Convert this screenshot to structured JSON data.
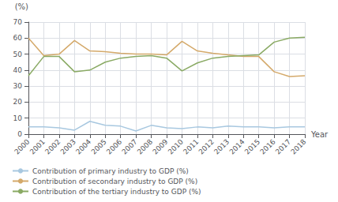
{
  "chart_data": {
    "type": "line",
    "xlabel": "Year",
    "ylabel": "(%)",
    "x": [
      2000,
      2001,
      2002,
      2003,
      2004,
      2005,
      2006,
      2007,
      2008,
      2009,
      2010,
      2011,
      2012,
      2013,
      2014,
      2015,
      2016,
      2017,
      2018
    ],
    "xlim": [
      2000,
      2018
    ],
    "xticks": [
      2000,
      2001,
      2002,
      2003,
      2004,
      2005,
      2006,
      2007,
      2008,
      2009,
      2010,
      2011,
      2012,
      2013,
      2014,
      2015,
      2016,
      2017,
      2018
    ],
    "ylim": [
      0,
      70
    ],
    "yticks": [
      0,
      10,
      20,
      30,
      40,
      50,
      60,
      70
    ],
    "series": [
      {
        "name": "Contribution of primary industry to GDP (%)",
        "color": "#a8c8e0",
        "values": [
          4.5,
          4.5,
          4.0,
          2.5,
          8.0,
          5.5,
          5.0,
          2.0,
          5.5,
          4.0,
          3.5,
          4.5,
          4.0,
          5.0,
          4.5,
          4.5,
          4.0,
          4.5,
          4.5
        ]
      },
      {
        "name": "Contribution of secondary industry to GDP (%)",
        "color": "#d4a96a",
        "values": [
          60.0,
          49.0,
          50.0,
          58.5,
          52.0,
          51.5,
          50.5,
          50.0,
          50.0,
          49.5,
          58.0,
          52.0,
          50.5,
          49.5,
          48.5,
          48.5,
          39.0,
          36.0,
          36.5
        ]
      },
      {
        "name": "Contribution of the tertiary industry to GDP (%)",
        "color": "#8aaa64",
        "values": [
          36.5,
          48.5,
          48.5,
          39.0,
          40.0,
          45.0,
          47.5,
          48.5,
          49.0,
          47.5,
          39.5,
          44.5,
          47.5,
          48.5,
          49.0,
          49.5,
          57.5,
          60.0,
          60.5
        ]
      }
    ],
    "grid": true,
    "legend": "lower left"
  }
}
